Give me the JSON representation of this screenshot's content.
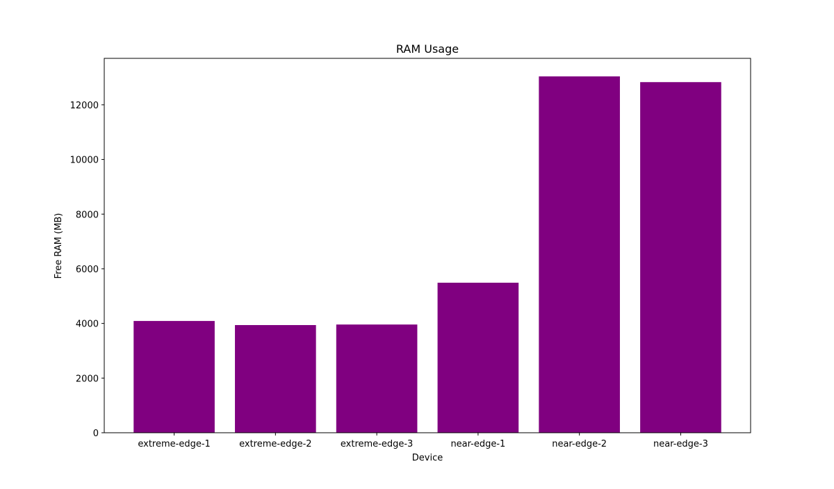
{
  "chart_data": {
    "type": "bar",
    "title": "RAM Usage",
    "xlabel": "Device",
    "ylabel": "Free RAM (MB)",
    "categories": [
      "extreme-edge-1",
      "extreme-edge-2",
      "extreme-edge-3",
      "near-edge-1",
      "near-edge-2",
      "near-edge-3"
    ],
    "values": [
      4090,
      3940,
      3960,
      5490,
      13040,
      12830
    ],
    "ylim": [
      0,
      13700
    ],
    "yticks": [
      0,
      2000,
      4000,
      6000,
      8000,
      10000,
      12000
    ],
    "ytick_labels": [
      "0",
      "2000",
      "4000",
      "6000",
      "8000",
      "10000",
      "12000"
    ],
    "bar_color": "#800080",
    "grid": false,
    "legend": "none"
  }
}
